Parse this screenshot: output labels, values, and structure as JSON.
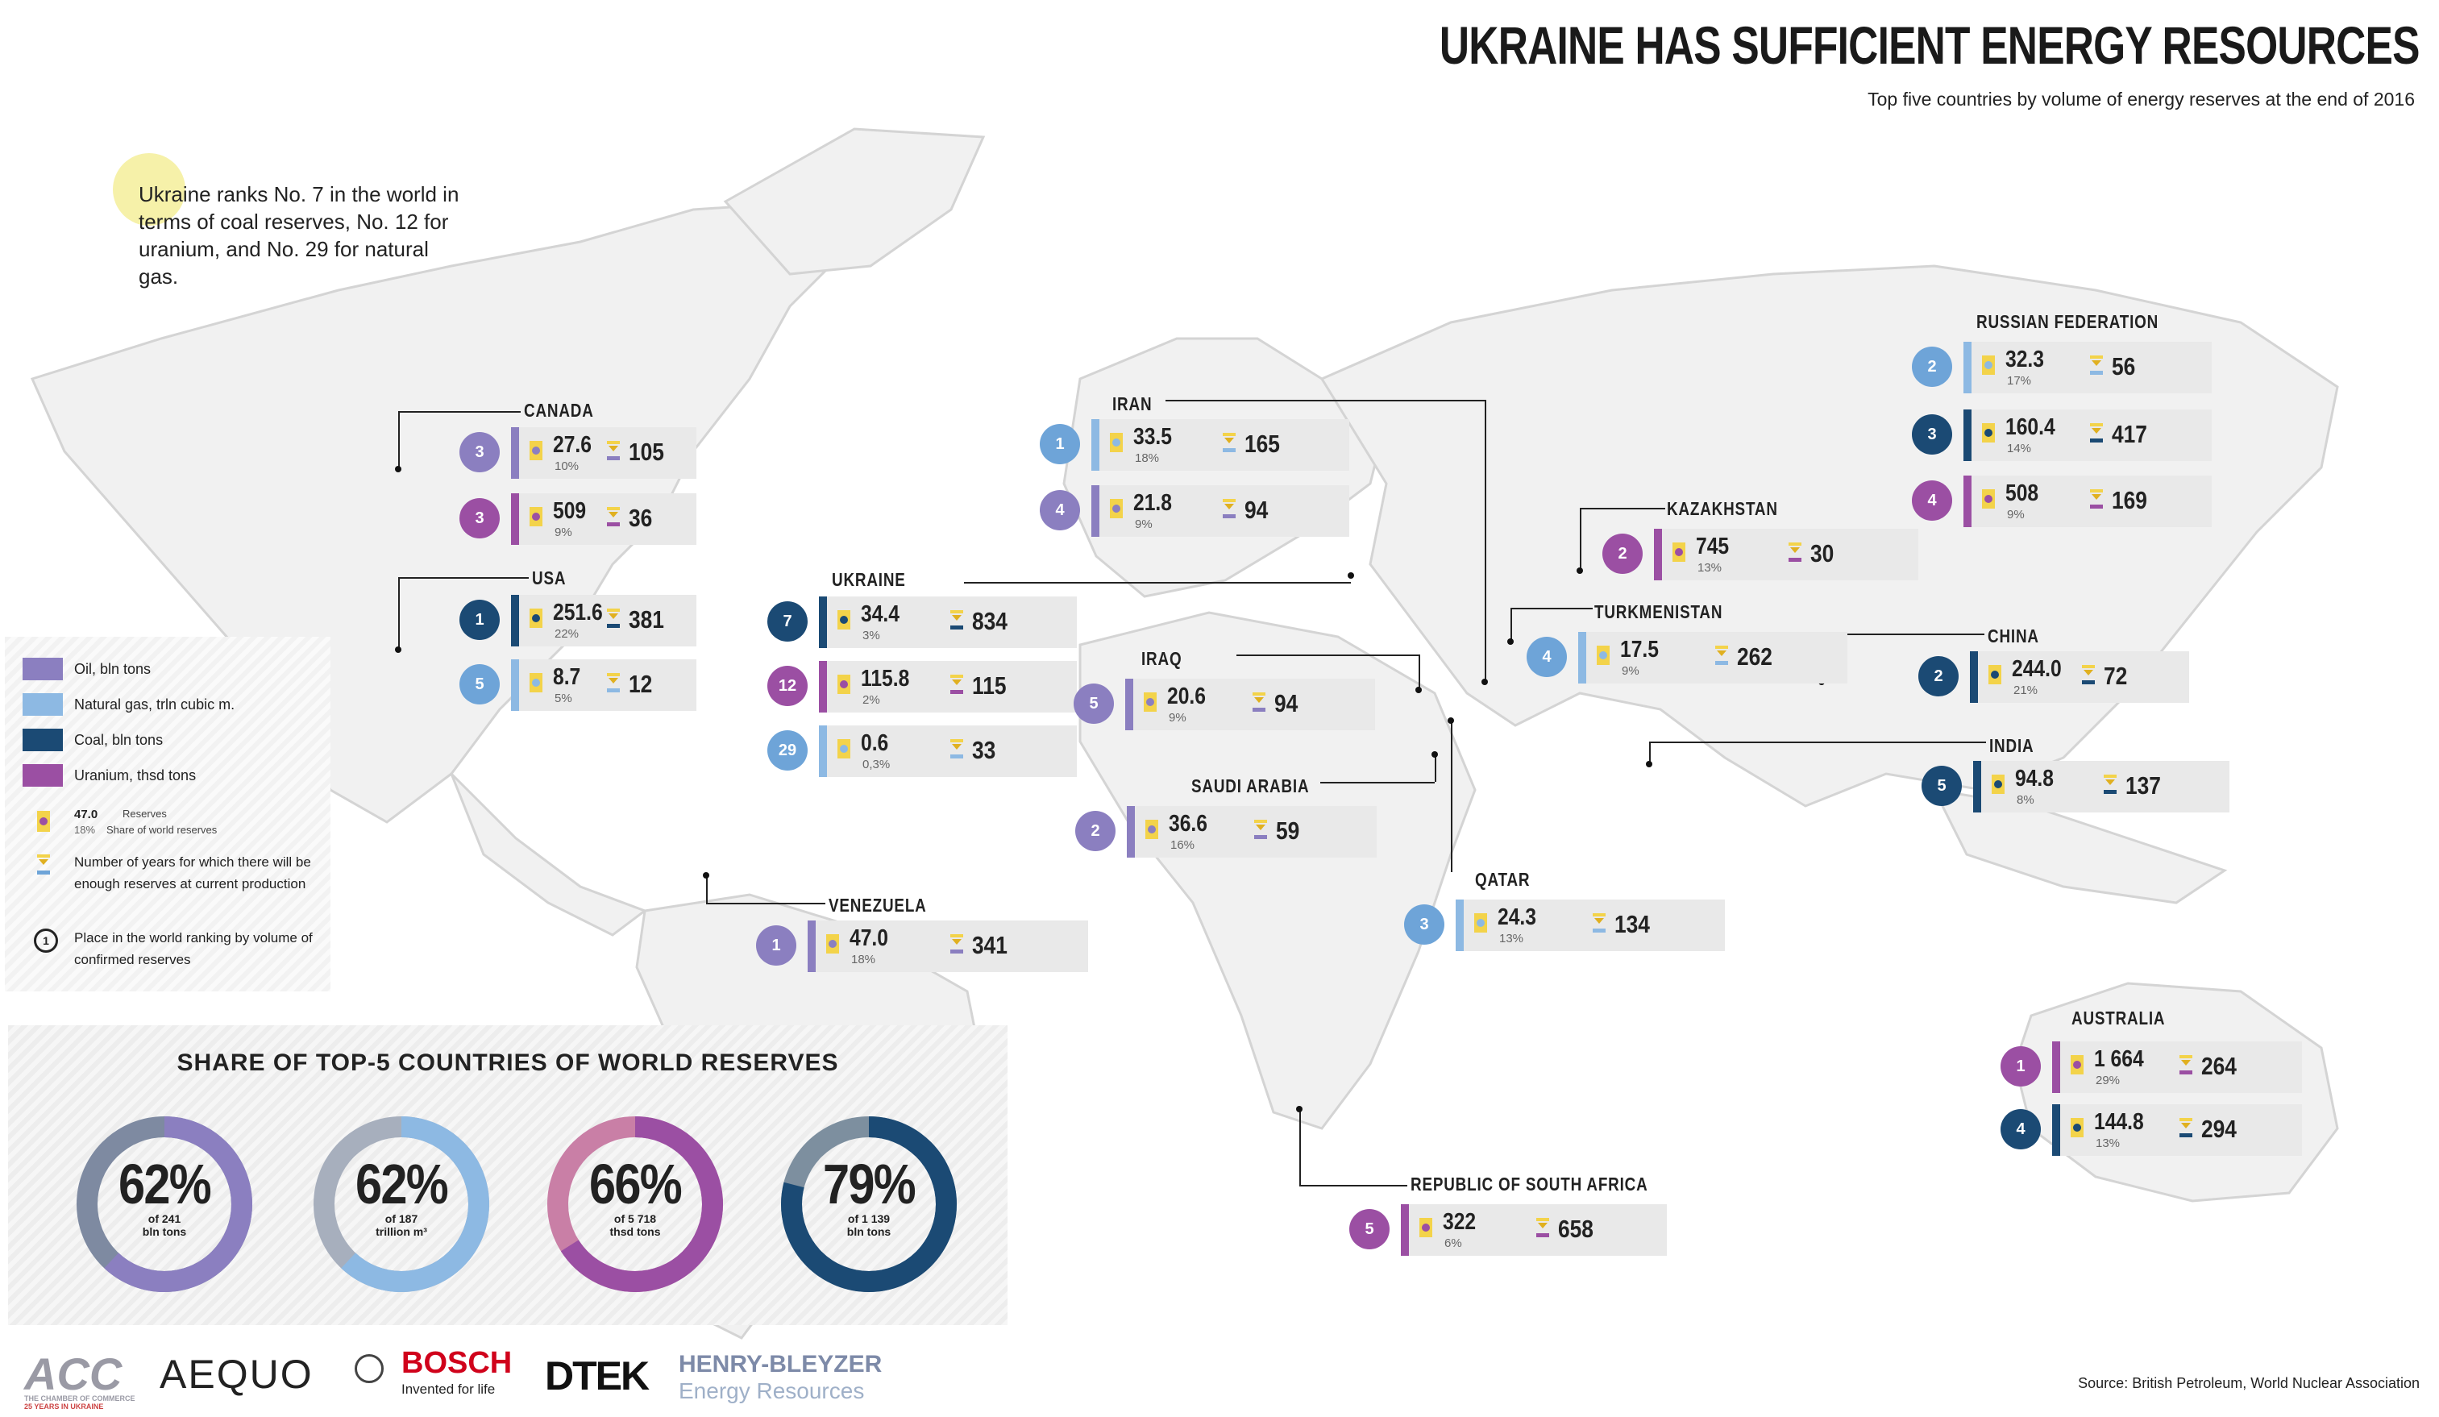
{
  "title": "UKRAINE HAS SUFFICIENT  ENERGY RESOURCES",
  "subtitle": "Top five countries by volume of energy reserves at the end of 2016",
  "note": "Ukraine ranks No. 7 in the world in terms of coal reserves, No. 12 for uranium, and No. 29 for natural gas.",
  "colors": {
    "oil": "#8b7fc0",
    "gas": "#8db9e3",
    "coal": "#1b4a74",
    "uranium": "#9b4fa3",
    "panel": "#e9e9e9",
    "gasRank": "#6ea4d8"
  },
  "legend": {
    "items": [
      {
        "key": "oil",
        "label": "Oil, bln tons"
      },
      {
        "key": "gas",
        "label": "Natural gas, trln cubic m."
      },
      {
        "key": "coal",
        "label": "Coal, bln tons"
      },
      {
        "key": "uranium",
        "label": "Uranium, thsd tons"
      }
    ],
    "example_value": "47.0",
    "example_share": "18%",
    "reserves_label": "Reserves",
    "share_label": "Share of world reserves",
    "years_label": "Number of years for which there will be enough reserves at current production",
    "rank_symbol": "1",
    "rank_label": "Place in the world ranking by volume of confirmed reserves"
  },
  "chart_data": {
    "type": "table",
    "countries": [
      {
        "name": "CANADA",
        "entries": [
          {
            "resource": "oil",
            "rank": "3",
            "reserves": "27.6",
            "share": "10%",
            "years": "105"
          },
          {
            "resource": "uranium",
            "rank": "3",
            "reserves": "509",
            "share": "9%",
            "years": "36"
          }
        ]
      },
      {
        "name": "USA",
        "entries": [
          {
            "resource": "coal",
            "rank": "1",
            "reserves": "251.6",
            "share": "22%",
            "years": "381"
          },
          {
            "resource": "gas",
            "rank": "5",
            "reserves": "8.7",
            "share": "5%",
            "years": "12"
          }
        ]
      },
      {
        "name": "UKRAINE",
        "entries": [
          {
            "resource": "coal",
            "rank": "7",
            "reserves": "34.4",
            "share": "3%",
            "years": "834"
          },
          {
            "resource": "uranium",
            "rank": "12",
            "reserves": "115.8",
            "share": "2%",
            "years": "115"
          },
          {
            "resource": "gas",
            "rank": "29",
            "reserves": "0.6",
            "share": "0,3%",
            "years": "33"
          }
        ]
      },
      {
        "name": "IRAN",
        "entries": [
          {
            "resource": "gas",
            "rank": "1",
            "reserves": "33.5",
            "share": "18%",
            "years": "165"
          },
          {
            "resource": "oil",
            "rank": "4",
            "reserves": "21.8",
            "share": "9%",
            "years": "94"
          }
        ]
      },
      {
        "name": "IRAQ",
        "entries": [
          {
            "resource": "oil",
            "rank": "5",
            "reserves": "20.6",
            "share": "9%",
            "years": "94"
          }
        ]
      },
      {
        "name": "SAUDI ARABIA",
        "entries": [
          {
            "resource": "oil",
            "rank": "2",
            "reserves": "36.6",
            "share": "16%",
            "years": "59"
          }
        ]
      },
      {
        "name": "VENEZUELA",
        "entries": [
          {
            "resource": "oil",
            "rank": "1",
            "reserves": "47.0",
            "share": "18%",
            "years": "341"
          }
        ]
      },
      {
        "name": "QATAR",
        "entries": [
          {
            "resource": "gas",
            "rank": "3",
            "reserves": "24.3",
            "share": "13%",
            "years": "134"
          }
        ]
      },
      {
        "name": "KAZAKHSTAN",
        "entries": [
          {
            "resource": "uranium",
            "rank": "2",
            "reserves": "745",
            "share": "13%",
            "years": "30"
          }
        ]
      },
      {
        "name": "TURKMENISTAN",
        "entries": [
          {
            "resource": "gas",
            "rank": "4",
            "reserves": "17.5",
            "share": "9%",
            "years": "262"
          }
        ]
      },
      {
        "name": "RUSSIAN FEDERATION",
        "entries": [
          {
            "resource": "gas",
            "rank": "2",
            "reserves": "32.3",
            "share": "17%",
            "years": "56"
          },
          {
            "resource": "coal",
            "rank": "3",
            "reserves": "160.4",
            "share": "14%",
            "years": "417"
          },
          {
            "resource": "uranium",
            "rank": "4",
            "reserves": "508",
            "share": "9%",
            "years": "169"
          }
        ]
      },
      {
        "name": "CHINA",
        "entries": [
          {
            "resource": "coal",
            "rank": "2",
            "reserves": "244.0",
            "share": "21%",
            "years": "72"
          }
        ]
      },
      {
        "name": "INDIA",
        "entries": [
          {
            "resource": "coal",
            "rank": "5",
            "reserves": "94.8",
            "share": "8%",
            "years": "137"
          }
        ]
      },
      {
        "name": "AUSTRALIA",
        "entries": [
          {
            "resource": "uranium",
            "rank": "1",
            "reserves": "1 664",
            "share": "29%",
            "years": "264"
          },
          {
            "resource": "coal",
            "rank": "4",
            "reserves": "144.8",
            "share": "13%",
            "years": "294"
          }
        ]
      },
      {
        "name": "REPUBLIC OF SOUTH AFRICA",
        "entries": [
          {
            "resource": "uranium",
            "rank": "5",
            "reserves": "322",
            "share": "6%",
            "years": "658"
          }
        ]
      }
    ]
  },
  "share_chart": {
    "type": "pie",
    "title": "SHARE OF TOP-5 COUNTRIES OF WORLD RESERVES",
    "donuts": [
      {
        "resource": "oil",
        "percent": 62,
        "label": "62%",
        "of": "of 241",
        "unit": "bln tons",
        "color": "#8b7fc0",
        "rest": "#7e8aa1"
      },
      {
        "resource": "gas",
        "percent": 62,
        "label": "62%",
        "of": "of 187",
        "unit": "trillion m³",
        "color": "#8db9e3",
        "rest": "#a7afbd"
      },
      {
        "resource": "uranium",
        "percent": 66,
        "label": "66%",
        "of": "of 5 718",
        "unit": "thsd tons",
        "color": "#9b4fa3",
        "rest": "#c97fa6"
      },
      {
        "resource": "coal",
        "percent": 79,
        "label": "79%",
        "of": "of 1 139",
        "unit": "bln tons",
        "color": "#1b4a74",
        "rest": "#7d8f9f"
      }
    ]
  },
  "logos": [
    "ACC",
    "THE CHAMBER OF COMMERCE",
    "25 YEARS IN UKRAINE",
    "AEQUO",
    "BOSCH",
    "Invented for life",
    "DTEK",
    "HENRY-BLEYZER",
    "Energy Resources"
  ],
  "source": "Source: British Petroleum, World Nuclear Association"
}
